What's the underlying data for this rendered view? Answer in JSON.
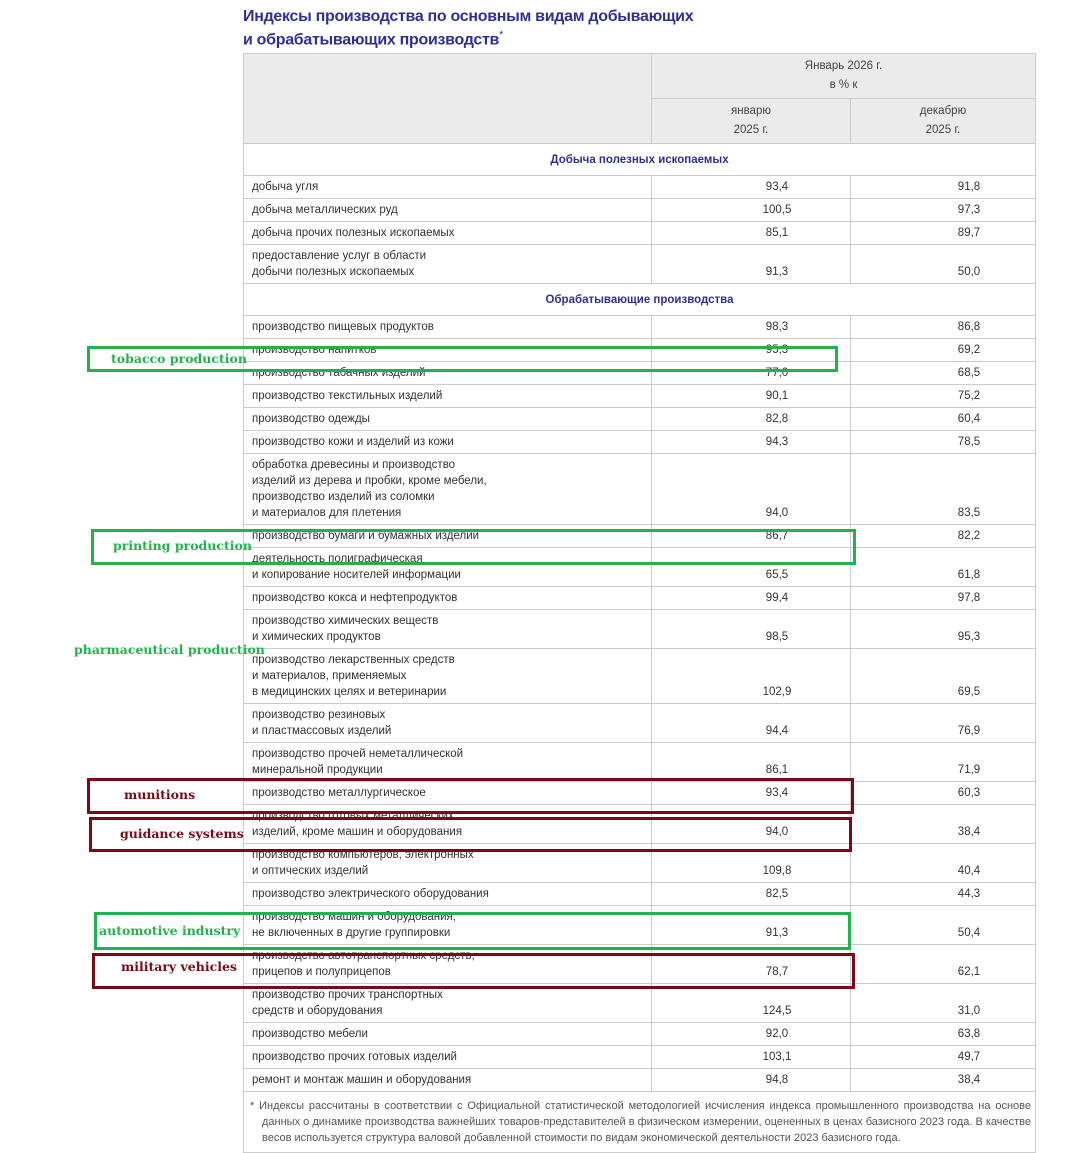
{
  "title_line1": "Индексы производства по основным видам добывающих",
  "title_line2": "и обрабатывающих производств",
  "title_mark": "*",
  "header": {
    "period": "Январь 2026 г.",
    "unit": "в % к",
    "col1": "январю\n2025 г.",
    "col2": "декабрю\n2025 г."
  },
  "sections": [
    {
      "title": "Добыча полезных ископаемых",
      "rows": [
        {
          "label": "добыча угля",
          "v1": "93,4",
          "v2": "91,8"
        },
        {
          "label": "добыча металлических руд",
          "v1": "100,5",
          "v2": "97,3"
        },
        {
          "label": "добыча прочих полезных ископаемых",
          "v1": "85,1",
          "v2": "89,7"
        },
        {
          "label": "предоставление услуг в области\nдобычи полезных ископаемых",
          "v1": "91,3",
          "v2": "50,0"
        }
      ]
    },
    {
      "title": "Обрабатывающие производства",
      "rows": [
        {
          "label": "производство пищевых продуктов",
          "v1": "98,3",
          "v2": "86,8"
        },
        {
          "label": "производство напитков",
          "v1": "95,3",
          "v2": "69,2"
        },
        {
          "label": "производство табачных изделий",
          "v1": "77,0",
          "v2": "68,5"
        },
        {
          "label": "производство текстильных изделий",
          "v1": "90,1",
          "v2": "75,2"
        },
        {
          "label": "производство одежды",
          "v1": "82,8",
          "v2": "60,4"
        },
        {
          "label": "производство кожи и изделий из кожи",
          "v1": "94,3",
          "v2": "78,5"
        },
        {
          "label": "обработка древесины и производство\nизделий из дерева и пробки, кроме мебели,\nпроизводство изделий из соломки\nи материалов для плетения",
          "v1": "94,0",
          "v2": "83,5"
        },
        {
          "label": "производство бумаги и бумажных изделий",
          "v1": "86,7",
          "v2": "82,2"
        },
        {
          "label": "деятельность полиграфическая\nи копирование носителей информации",
          "v1": "65,5",
          "v2": "61,8"
        },
        {
          "label": "производство кокса и нефтепродуктов",
          "v1": "99,4",
          "v2": "97,8"
        },
        {
          "label": "производство химических веществ\nи химических продуктов",
          "v1": "98,5",
          "v2": "95,3"
        },
        {
          "label": "производство лекарственных средств\nи материалов, применяемых\nв медицинских целях и ветеринарии",
          "v1": "102,9",
          "v2": "69,5"
        },
        {
          "label": "производство резиновых\nи пластмассовых изделий",
          "v1": "94,4",
          "v2": "76,9"
        },
        {
          "label": "производство прочей  неметаллической\nминеральной продукции",
          "v1": "86,1",
          "v2": "71,9"
        },
        {
          "label": "производство металлургическое",
          "v1": "93,4",
          "v2": "60,3"
        },
        {
          "label": "производство готовых металлических\nизделий, кроме машин и оборудования",
          "v1": "94,0",
          "v2": "38,4"
        },
        {
          "label": "производство компьютеров, электронных\nи оптических изделий",
          "v1": "109,8",
          "v2": "40,4"
        },
        {
          "label": "производство электрического оборудования",
          "v1": "82,5",
          "v2": "44,3"
        },
        {
          "label": "производство машин и оборудования,\nне включенных в другие группировки",
          "v1": "91,3",
          "v2": "50,4"
        },
        {
          "label": "производство автотранспортных средств,\nприцепов и полуприцепов",
          "v1": "78,7",
          "v2": "62,1"
        },
        {
          "label": "производство прочих транспортных\nсредств и оборудования",
          "v1": "124,5",
          "v2": "31,0"
        },
        {
          "label": "производство мебели",
          "v1": "92,0",
          "v2": "63,8"
        },
        {
          "label": "производство прочих готовых изделий",
          "v1": "103,1",
          "v2": "49,7"
        },
        {
          "label": "ремонт и монтаж машин и оборудования",
          "v1": "94,8",
          "v2": "38,4"
        }
      ]
    }
  ],
  "footnote": "* Индексы рассчитаны в соответствии с Официальной статистической методологией исчисления индекса промышленного производства на основе данных о динамике производства важнейших товаров-представителей в физическом измерении, оцененных в ценах базисного 2023 года. В качестве весов используется структура валовой добавленной стоимости по видам экономической деятельности 2023 базисного года.",
  "annotations": {
    "tobacco": "tobacco production",
    "printing": "printing production",
    "pharma": "pharmaceutical production",
    "munitions": "munitions",
    "guidance": "guidance systems",
    "automotive": "automotive industry",
    "military": "military vehicles"
  },
  "colors": {
    "highlight_green": "#22b14c",
    "highlight_red": "#7b0a16",
    "title": "#2e3192"
  }
}
